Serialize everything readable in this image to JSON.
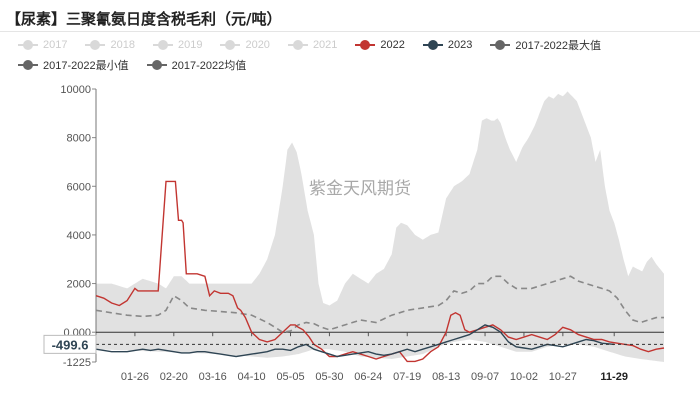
{
  "title": "【尿素】三聚氰氨日度含税毛利（元/吨）",
  "watermark": "紫金天风期货",
  "legend": [
    {
      "label": "2017",
      "color": "#d9d9d9",
      "active": false
    },
    {
      "label": "2018",
      "color": "#d9d9d9",
      "active": false
    },
    {
      "label": "2019",
      "color": "#d9d9d9",
      "active": false
    },
    {
      "label": "2020",
      "color": "#d9d9d9",
      "active": false
    },
    {
      "label": "2021",
      "color": "#d9d9d9",
      "active": false
    },
    {
      "label": "2022",
      "color": "#c23531",
      "active": true
    },
    {
      "label": "2023",
      "color": "#2f4554",
      "active": true
    },
    {
      "label": "2017-2022最大值",
      "color": "#666666",
      "active": true
    },
    {
      "label": "2017-2022最小值",
      "color": "#666666",
      "active": true
    },
    {
      "label": "2017-2022均值",
      "color": "#666666",
      "active": true
    }
  ],
  "chart_data": {
    "type": "area",
    "ylim": [
      -1225,
      10000
    ],
    "yticks": [
      -1225,
      0,
      2000,
      4000,
      6000,
      8000,
      10000
    ],
    "ytick_labels": [
      "-1225",
      "0.000",
      "2000",
      "4000",
      "6000",
      "8000",
      "10000"
    ],
    "x_range": [
      0,
      365
    ],
    "x_ticks": [
      {
        "pos": 25,
        "label": "01-26"
      },
      {
        "pos": 50,
        "label": "02-20"
      },
      {
        "pos": 75,
        "label": "03-16"
      },
      {
        "pos": 100,
        "label": "04-10"
      },
      {
        "pos": 125,
        "label": "05-05"
      },
      {
        "pos": 150,
        "label": "05-30"
      },
      {
        "pos": 175,
        "label": "06-24"
      },
      {
        "pos": 200,
        "label": "07-19"
      },
      {
        "pos": 225,
        "label": "08-13"
      },
      {
        "pos": 250,
        "label": "09-07"
      },
      {
        "pos": 275,
        "label": "10-02"
      },
      {
        "pos": 300,
        "label": "10-27"
      },
      {
        "pos": 333,
        "label": "11-29",
        "bold": true
      }
    ],
    "current_value_label": "-499.6",
    "current_value": -499.6,
    "series": [
      {
        "name": "2017-2022最大值",
        "kind": "band-upper",
        "x": [
          0,
          10,
          20,
          30,
          40,
          45,
          50,
          55,
          60,
          70,
          80,
          90,
          100,
          105,
          110,
          115,
          120,
          123,
          126,
          129,
          132,
          136,
          140,
          143,
          146,
          150,
          155,
          160,
          165,
          170,
          175,
          180,
          185,
          190,
          193,
          196,
          200,
          205,
          210,
          215,
          220,
          225,
          230,
          235,
          240,
          245,
          248,
          251,
          254,
          256,
          258,
          260,
          263,
          266,
          270,
          274,
          278,
          282,
          285,
          288,
          291,
          294,
          297,
          300,
          303,
          306,
          309,
          312,
          315,
          318,
          321,
          324,
          327,
          330,
          333,
          336,
          339,
          342,
          345,
          348,
          351,
          354,
          357,
          360,
          365
        ],
        "values": [
          2000,
          2000,
          1800,
          2200,
          2000,
          1800,
          2300,
          2300,
          2000,
          2000,
          2000,
          2000,
          2000,
          2400,
          3000,
          4000,
          6000,
          7500,
          7800,
          7400,
          6500,
          5000,
          4000,
          2000,
          1200,
          1100,
          1300,
          2000,
          2400,
          2200,
          2000,
          2400,
          2600,
          3200,
          4300,
          4500,
          4400,
          4000,
          3800,
          4000,
          4100,
          5500,
          6000,
          6200,
          6500,
          7500,
          8700,
          8800,
          8700,
          8700,
          8800,
          8600,
          8000,
          7500,
          7000,
          7600,
          8000,
          8500,
          9000,
          9500,
          9700,
          9600,
          9800,
          9700,
          9900,
          9700,
          9500,
          9000,
          8500,
          8000,
          7000,
          7500,
          6000,
          5000,
          4500,
          3800,
          3000,
          2300,
          2700,
          2600,
          2500,
          2900,
          3100,
          2800,
          2400
        ]
      },
      {
        "name": "2017-2022最小值",
        "kind": "band-lower",
        "x": [
          0,
          20,
          40,
          60,
          80,
          90,
          100,
          110,
          120,
          130,
          140,
          150,
          160,
          170,
          180,
          190,
          200,
          210,
          220,
          230,
          240,
          250,
          260,
          270,
          280,
          290,
          300,
          310,
          320,
          330,
          340,
          350,
          365
        ],
        "values": [
          -700,
          -750,
          -800,
          -850,
          -900,
          -950,
          -1000,
          -1050,
          -1000,
          -900,
          -700,
          -700,
          -800,
          -1000,
          -1050,
          -1100,
          -1000,
          -900,
          -600,
          -400,
          -300,
          -400,
          -600,
          -800,
          -800,
          -600,
          -500,
          -500,
          -600,
          -800,
          -1000,
          -1100,
          -1225
        ]
      },
      {
        "name": "2017-2022均值",
        "kind": "dashed",
        "color": "#888888",
        "x": [
          0,
          10,
          20,
          30,
          40,
          45,
          50,
          55,
          60,
          70,
          80,
          90,
          100,
          105,
          110,
          115,
          120,
          125,
          130,
          135,
          140,
          145,
          150,
          160,
          170,
          180,
          190,
          195,
          200,
          210,
          220,
          225,
          230,
          235,
          240,
          245,
          250,
          255,
          260,
          265,
          270,
          275,
          280,
          285,
          290,
          295,
          300,
          305,
          310,
          315,
          320,
          325,
          330,
          335,
          340,
          345,
          350,
          355,
          360,
          365
        ],
        "values": [
          900,
          800,
          700,
          650,
          700,
          900,
          1500,
          1300,
          1000,
          900,
          850,
          800,
          700,
          550,
          400,
          200,
          0,
          50,
          300,
          400,
          350,
          200,
          100,
          300,
          500,
          400,
          700,
          800,
          900,
          1000,
          1100,
          1300,
          1700,
          1600,
          1700,
          2000,
          2000,
          2300,
          2300,
          2000,
          1800,
          1800,
          1800,
          1900,
          2000,
          2100,
          2200,
          2300,
          2100,
          2000,
          1900,
          1800,
          1700,
          1400,
          900,
          500,
          400,
          500,
          600,
          600
        ]
      },
      {
        "name": "2022",
        "kind": "line",
        "color": "#c23531",
        "x": [
          0,
          5,
          10,
          15,
          20,
          25,
          27,
          30,
          35,
          40,
          45,
          47,
          49,
          51,
          53,
          55,
          56,
          58,
          60,
          62,
          65,
          70,
          73,
          76,
          80,
          85,
          88,
          91,
          93,
          96,
          100,
          105,
          110,
          115,
          120,
          125,
          128,
          130,
          133,
          137,
          140,
          145,
          150,
          155,
          160,
          165,
          170,
          175,
          180,
          185,
          190,
          195,
          200,
          205,
          210,
          215,
          220,
          225,
          228,
          231,
          234,
          237,
          240,
          245,
          250,
          255,
          260,
          265,
          270,
          275,
          280,
          285,
          290,
          295,
          300,
          305,
          310,
          315,
          320,
          325,
          330,
          335,
          340,
          345,
          350,
          355,
          360,
          365
        ],
        "values": [
          1500,
          1400,
          1200,
          1100,
          1300,
          1800,
          1700,
          1700,
          1700,
          1700,
          6200,
          6200,
          6200,
          6200,
          4600,
          4600,
          4500,
          2400,
          2400,
          2400,
          2400,
          2300,
          1500,
          1700,
          1600,
          1600,
          1500,
          1000,
          900,
          600,
          0,
          -300,
          -400,
          -300,
          0,
          300,
          300,
          200,
          100,
          -200,
          -500,
          -700,
          -1000,
          -1000,
          -900,
          -800,
          -900,
          -1000,
          -1100,
          -1000,
          -900,
          -800,
          -1200,
          -1200,
          -1100,
          -800,
          -600,
          0,
          700,
          800,
          700,
          100,
          0,
          100,
          200,
          300,
          100,
          -200,
          -300,
          -200,
          -100,
          -200,
          -300,
          -100,
          200,
          100,
          -100,
          -200,
          -300,
          -300,
          -400,
          -450,
          -500,
          -550,
          -700,
          -800,
          -700,
          -650
        ]
      },
      {
        "name": "2023",
        "kind": "line",
        "color": "#2f4554",
        "x": [
          0,
          10,
          20,
          25,
          30,
          35,
          40,
          45,
          50,
          55,
          60,
          65,
          70,
          75,
          80,
          85,
          90,
          95,
          100,
          105,
          110,
          115,
          120,
          125,
          130,
          135,
          140,
          145,
          150,
          155,
          160,
          165,
          170,
          175,
          180,
          185,
          190,
          195,
          200,
          205,
          210,
          215,
          220,
          225,
          230,
          235,
          240,
          245,
          250,
          255,
          260,
          265,
          270,
          275,
          280,
          285,
          290,
          295,
          300,
          305,
          310,
          315,
          320,
          325,
          330,
          333
        ],
        "values": [
          -700,
          -800,
          -800,
          -750,
          -700,
          -750,
          -700,
          -750,
          -800,
          -850,
          -850,
          -800,
          -800,
          -850,
          -900,
          -950,
          -1000,
          -950,
          -900,
          -850,
          -800,
          -700,
          -700,
          -750,
          -600,
          -500,
          -700,
          -800,
          -900,
          -1000,
          -950,
          -900,
          -850,
          -800,
          -900,
          -950,
          -900,
          -800,
          -700,
          -800,
          -700,
          -600,
          -500,
          -400,
          -300,
          -200,
          -100,
          100,
          300,
          200,
          0,
          -400,
          -600,
          -650,
          -700,
          -600,
          -500,
          -550,
          -600,
          -500,
          -400,
          -300,
          -350,
          -450,
          -480,
          -499.6
        ]
      }
    ]
  }
}
